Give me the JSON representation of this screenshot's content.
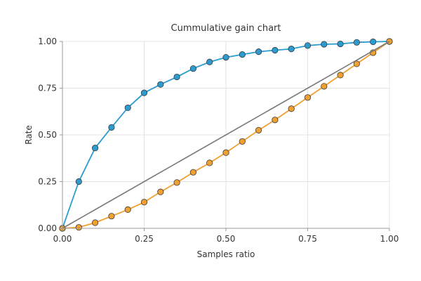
{
  "chart_data": {
    "type": "line",
    "title": "Cummulative gain chart",
    "xlabel": "Samples ratio",
    "ylabel": "Rate",
    "xlim": [
      0,
      1
    ],
    "ylim": [
      0,
      1
    ],
    "grid": true,
    "x_ticks": [
      "0.00",
      "0.25",
      "0.50",
      "0.75",
      "1.00"
    ],
    "y_ticks": [
      "0.00",
      "0.25",
      "0.50",
      "0.75",
      "1.00"
    ],
    "series": [
      {
        "color": "#2b9bd0",
        "x": [
          0.0,
          0.05,
          0.1,
          0.15,
          0.2,
          0.25,
          0.3,
          0.35,
          0.4,
          0.45,
          0.5,
          0.55,
          0.6,
          0.65,
          0.7,
          0.75,
          0.8,
          0.85,
          0.9,
          0.95,
          1.0
        ],
        "y": [
          0.0,
          0.25,
          0.43,
          0.54,
          0.645,
          0.725,
          0.77,
          0.81,
          0.855,
          0.89,
          0.915,
          0.93,
          0.945,
          0.953,
          0.96,
          0.978,
          0.985,
          0.987,
          0.995,
          0.998,
          1.0
        ]
      },
      {
        "color": "#f0a030",
        "x": [
          0.0,
          0.05,
          0.1,
          0.15,
          0.2,
          0.25,
          0.3,
          0.35,
          0.4,
          0.45,
          0.5,
          0.55,
          0.6,
          0.65,
          0.7,
          0.75,
          0.8,
          0.85,
          0.9,
          0.95,
          1.0
        ],
        "y": [
          0.0,
          0.005,
          0.03,
          0.065,
          0.1,
          0.14,
          0.195,
          0.245,
          0.3,
          0.35,
          0.405,
          0.465,
          0.525,
          0.58,
          0.64,
          0.7,
          0.76,
          0.82,
          0.88,
          0.94,
          1.0
        ]
      },
      {
        "color": "#777777",
        "x": [
          0.0,
          1.0
        ],
        "y": [
          0.0,
          1.0
        ],
        "markers": false
      }
    ]
  }
}
